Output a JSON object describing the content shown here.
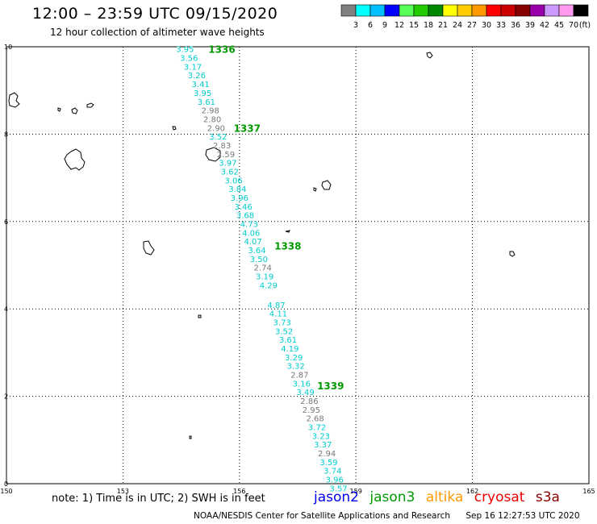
{
  "title": "12:00 – 23:59 UTC 09/15/2020",
  "subtitle": "12 hour collection of altimeter wave heights",
  "colorbar": {
    "colors": [
      "#808080",
      "#00ffff",
      "#00bfff",
      "#0000ff",
      "#55ff55",
      "#22cc00",
      "#008800",
      "#ffff00",
      "#ffcc00",
      "#ff9900",
      "#ff0000",
      "#cc0000",
      "#880000",
      "#9900aa",
      "#cc99ff",
      "#ff99ee",
      "#000000"
    ],
    "labels": [
      "3",
      "6",
      "9",
      "12",
      "15",
      "18",
      "21",
      "24",
      "27",
      "30",
      "33",
      "36",
      "39",
      "42",
      "45",
      "70"
    ],
    "unit": "(ft)"
  },
  "axes": {
    "x_ticks": [
      "150",
      "153",
      "156",
      "159",
      "162",
      "165"
    ],
    "y_ticks": [
      "0",
      "2",
      "4",
      "6",
      "8",
      "10"
    ],
    "xlim": [
      150,
      165
    ],
    "ylim": [
      0,
      10
    ]
  },
  "passes": [
    {
      "label": "1336",
      "lon": 155.2,
      "lat": 9.95
    },
    {
      "label": "1337",
      "lon": 155.85,
      "lat": 8.15
    },
    {
      "label": "1338",
      "lon": 156.9,
      "lat": 5.45
    },
    {
      "label": "1339",
      "lon": 158.0,
      "lat": 2.25
    }
  ],
  "track": {
    "satellite": "jason3",
    "observations": [
      {
        "value": "3.95",
        "lon": 154.6,
        "lat": 9.95,
        "color": "#00cccc"
      },
      {
        "value": "3.56",
        "lon": 154.7,
        "lat": 9.75,
        "color": "#00cccc"
      },
      {
        "value": "3.17",
        "lon": 154.8,
        "lat": 9.55,
        "color": "#00cccc"
      },
      {
        "value": "3.26",
        "lon": 154.9,
        "lat": 9.35,
        "color": "#00cccc"
      },
      {
        "value": "3.41",
        "lon": 155.0,
        "lat": 9.15,
        "color": "#00cccc"
      },
      {
        "value": "3.95",
        "lon": 155.05,
        "lat": 8.95,
        "color": "#00cccc"
      },
      {
        "value": "3.61",
        "lon": 155.15,
        "lat": 8.75,
        "color": "#00cccc"
      },
      {
        "value": "2.98",
        "lon": 155.25,
        "lat": 8.55,
        "color": "#777777"
      },
      {
        "value": "2.80",
        "lon": 155.3,
        "lat": 8.35,
        "color": "#777777"
      },
      {
        "value": "2.90",
        "lon": 155.4,
        "lat": 8.15,
        "color": "#777777"
      },
      {
        "value": "3.52",
        "lon": 155.45,
        "lat": 7.95,
        "color": "#00cccc"
      },
      {
        "value": "2.83",
        "lon": 155.55,
        "lat": 7.75,
        "color": "#777777"
      },
      {
        "value": "2.59",
        "lon": 155.65,
        "lat": 7.55,
        "color": "#777777"
      },
      {
        "value": "3.97",
        "lon": 155.7,
        "lat": 7.35,
        "color": "#00cccc"
      },
      {
        "value": "3.62",
        "lon": 155.75,
        "lat": 7.15,
        "color": "#00cccc"
      },
      {
        "value": "3.06",
        "lon": 155.85,
        "lat": 6.95,
        "color": "#00cccc"
      },
      {
        "value": "3.84",
        "lon": 155.95,
        "lat": 6.75,
        "color": "#00cccc"
      },
      {
        "value": "3.96",
        "lon": 156.0,
        "lat": 6.55,
        "color": "#00cccc"
      },
      {
        "value": "3.46",
        "lon": 156.1,
        "lat": 6.35,
        "color": "#00cccc"
      },
      {
        "value": "3.68",
        "lon": 156.15,
        "lat": 6.15,
        "color": "#00cccc"
      },
      {
        "value": "4.73",
        "lon": 156.25,
        "lat": 5.95,
        "color": "#00cccc"
      },
      {
        "value": "4.06",
        "lon": 156.3,
        "lat": 5.75,
        "color": "#00cccc"
      },
      {
        "value": "4.07",
        "lon": 156.35,
        "lat": 5.55,
        "color": "#00cccc"
      },
      {
        "value": "3.64",
        "lon": 156.45,
        "lat": 5.35,
        "color": "#00cccc"
      },
      {
        "value": "3.50",
        "lon": 156.5,
        "lat": 5.15,
        "color": "#00cccc"
      },
      {
        "value": "2.74",
        "lon": 156.6,
        "lat": 4.95,
        "color": "#777777"
      },
      {
        "value": "3.19",
        "lon": 156.65,
        "lat": 4.75,
        "color": "#00cccc"
      },
      {
        "value": "4.29",
        "lon": 156.75,
        "lat": 4.55,
        "color": "#00cccc"
      },
      {
        "value": "4.87",
        "lon": 156.95,
        "lat": 4.1,
        "color": "#00cccc"
      },
      {
        "value": "4.11",
        "lon": 157.0,
        "lat": 3.9,
        "color": "#00cccc"
      },
      {
        "value": "3.73",
        "lon": 157.1,
        "lat": 3.7,
        "color": "#00cccc"
      },
      {
        "value": "3.52",
        "lon": 157.15,
        "lat": 3.5,
        "color": "#00cccc"
      },
      {
        "value": "3.61",
        "lon": 157.25,
        "lat": 3.3,
        "color": "#00cccc"
      },
      {
        "value": "4.19",
        "lon": 157.3,
        "lat": 3.1,
        "color": "#00cccc"
      },
      {
        "value": "3.29",
        "lon": 157.4,
        "lat": 2.9,
        "color": "#00cccc"
      },
      {
        "value": "3.32",
        "lon": 157.45,
        "lat": 2.7,
        "color": "#00cccc"
      },
      {
        "value": "2.87",
        "lon": 157.55,
        "lat": 2.5,
        "color": "#777777"
      },
      {
        "value": "3.16",
        "lon": 157.6,
        "lat": 2.3,
        "color": "#00cccc"
      },
      {
        "value": "3.49",
        "lon": 157.7,
        "lat": 2.1,
        "color": "#00cccc"
      },
      {
        "value": "2.86",
        "lon": 157.8,
        "lat": 1.9,
        "color": "#777777"
      },
      {
        "value": "2.95",
        "lon": 157.85,
        "lat": 1.7,
        "color": "#777777"
      },
      {
        "value": "2.68",
        "lon": 157.95,
        "lat": 1.5,
        "color": "#777777"
      },
      {
        "value": "3.72",
        "lon": 158.0,
        "lat": 1.3,
        "color": "#00cccc"
      },
      {
        "value": "3.23",
        "lon": 158.1,
        "lat": 1.1,
        "color": "#00cccc"
      },
      {
        "value": "3.37",
        "lon": 158.15,
        "lat": 0.9,
        "color": "#00cccc"
      },
      {
        "value": "2.94",
        "lon": 158.25,
        "lat": 0.7,
        "color": "#777777"
      },
      {
        "value": "3.59",
        "lon": 158.3,
        "lat": 0.5,
        "color": "#00cccc"
      },
      {
        "value": "3.74",
        "lon": 158.4,
        "lat": 0.3,
        "color": "#00cccc"
      },
      {
        "value": "3.96",
        "lon": 158.45,
        "lat": 0.1,
        "color": "#00cccc"
      },
      {
        "value": "3.57",
        "lon": 158.55,
        "lat": -0.1,
        "color": "#00cccc"
      }
    ]
  },
  "note": "note:  1) Time is in UTC; 2) SWH is in feet",
  "legend": [
    {
      "name": "jason2",
      "color": "#0000ee"
    },
    {
      "name": "jason3",
      "color": "#009900"
    },
    {
      "name": "altika",
      "color": "#ff9900"
    },
    {
      "name": "cryosat",
      "color": "#ee0000"
    },
    {
      "name": "s3a",
      "color": "#880000"
    }
  ],
  "footer": {
    "source": "NOAA/NESDIS Center for Satellite Applications and Research",
    "timestamp": "Sep 16 12:27:53 UTC 2020"
  }
}
